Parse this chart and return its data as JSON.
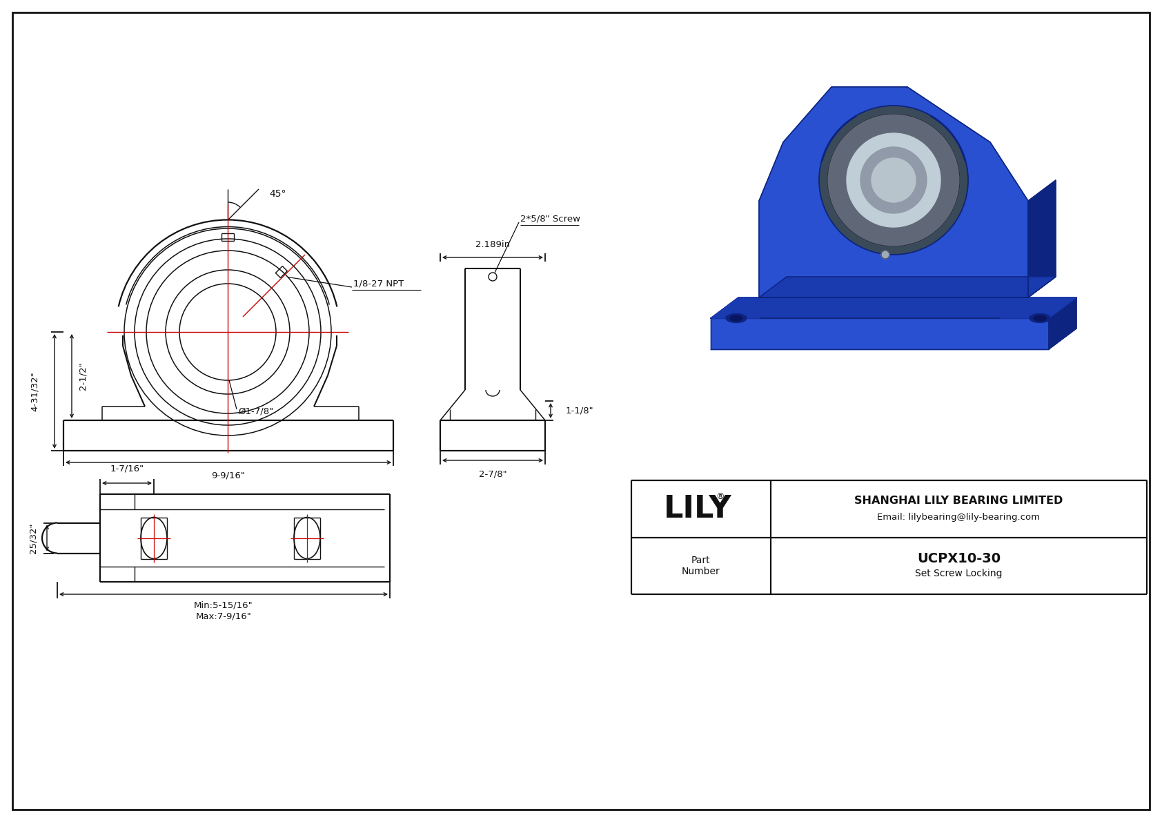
{
  "bg": "#ffffff",
  "lc": "#111111",
  "rc": "#cc0000",
  "blue1": "#1a3ab0",
  "blue2": "#2850d0",
  "blue3": "#0d2480",
  "blue4": "#3a6ae8",
  "gray1": "#606878",
  "gray2": "#8898a8",
  "silver": "#c0ced8",
  "company": "SHANGHAI LILY BEARING LIMITED",
  "email": "Email: lilybearing@lily-bearing.com",
  "logo": "LILY",
  "part_label": "Part\nNumber",
  "part_num": "UCPX10-30",
  "subtitle": "Set Screw Locking",
  "d_overall_h": "4-31/32\"",
  "d_shaft_h": "2-1/2\"",
  "d_bore": "Ø1-7/8\"",
  "d_width": "9-9/16\"",
  "d_side_h": "1-1/8\"",
  "d_side_w": "2-7/8\"",
  "d_top_w": "2.189in",
  "d_angle": "45°",
  "d_npt": "1/8-27 NPT",
  "d_screw": "2*5/8\" Screw",
  "d_bolt_w": "1-7/16\"",
  "d_bolt_h": "25/32\"",
  "d_min": "Min:5-15/16\"",
  "d_max": "Max:7-9/16\""
}
